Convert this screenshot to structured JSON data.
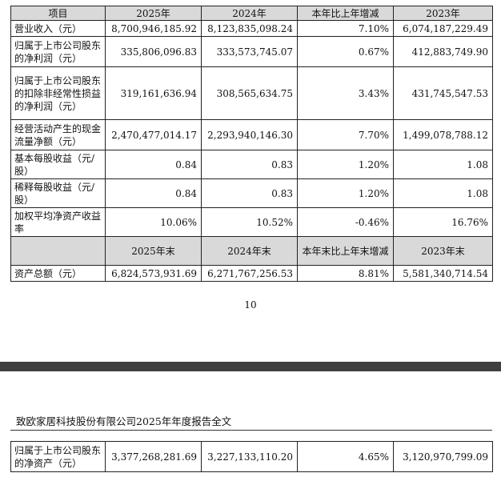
{
  "table": {
    "header": [
      "项目",
      "2025年",
      "2024年",
      "本年比上年增减",
      "2023年"
    ],
    "rows": [
      {
        "label": "营业收入（元）",
        "v2025": "8,700,946,185.92",
        "v2024": "8,123,835,098.24",
        "change": "7.10%",
        "v2023": "6,074,187,229.49"
      },
      {
        "label": "归属于上市公司股东的净利润（元）",
        "v2025": "335,806,096.83",
        "v2024": "333,573,745.07",
        "change": "0.67%",
        "v2023": "412,883,749.90"
      },
      {
        "label": "归属于上市公司股东的扣除非经常性损益的净利润（元）",
        "v2025": "319,161,636.94",
        "v2024": "308,565,634.75",
        "change": "3.43%",
        "v2023": "431,745,547.53"
      },
      {
        "label": "经营活动产生的现金流量净额（元）",
        "v2025": "2,470,477,014.17",
        "v2024": "2,293,940,146.30",
        "change": "7.70%",
        "v2023": "1,499,078,788.12"
      },
      {
        "label": "基本每股收益（元/股）",
        "v2025": "0.84",
        "v2024": "0.83",
        "change": "1.20%",
        "v2023": "1.08"
      },
      {
        "label": "稀释每股收益（元/股）",
        "v2025": "0.84",
        "v2024": "0.83",
        "change": "1.20%",
        "v2023": "1.08"
      },
      {
        "label": "加权平均净资产收益率",
        "v2025": "10.06%",
        "v2024": "10.52%",
        "change": "-0.46%",
        "v2023": "16.76%"
      }
    ],
    "header2": [
      "",
      "2025年末",
      "2024年末",
      "本年末比上年末增减",
      "2023年末"
    ],
    "rows2": [
      {
        "label": "资产总额（元）",
        "v2025": "6,824,573,931.69",
        "v2024": "6,271,767,256.53",
        "change": "8.81%",
        "v2023": "5,581,340,714.54"
      }
    ]
  },
  "page_number": "10",
  "running_header": "致欧家居科技股份有限公司2025年年度报告全文",
  "continued_rows": [
    {
      "label": "归属于上市公司股东的净资产（元）",
      "v2025": "3,377,268,281.69",
      "v2024": "3,227,133,110.20",
      "change": "4.65%",
      "v2023": "3,120,970,799.09"
    }
  ]
}
